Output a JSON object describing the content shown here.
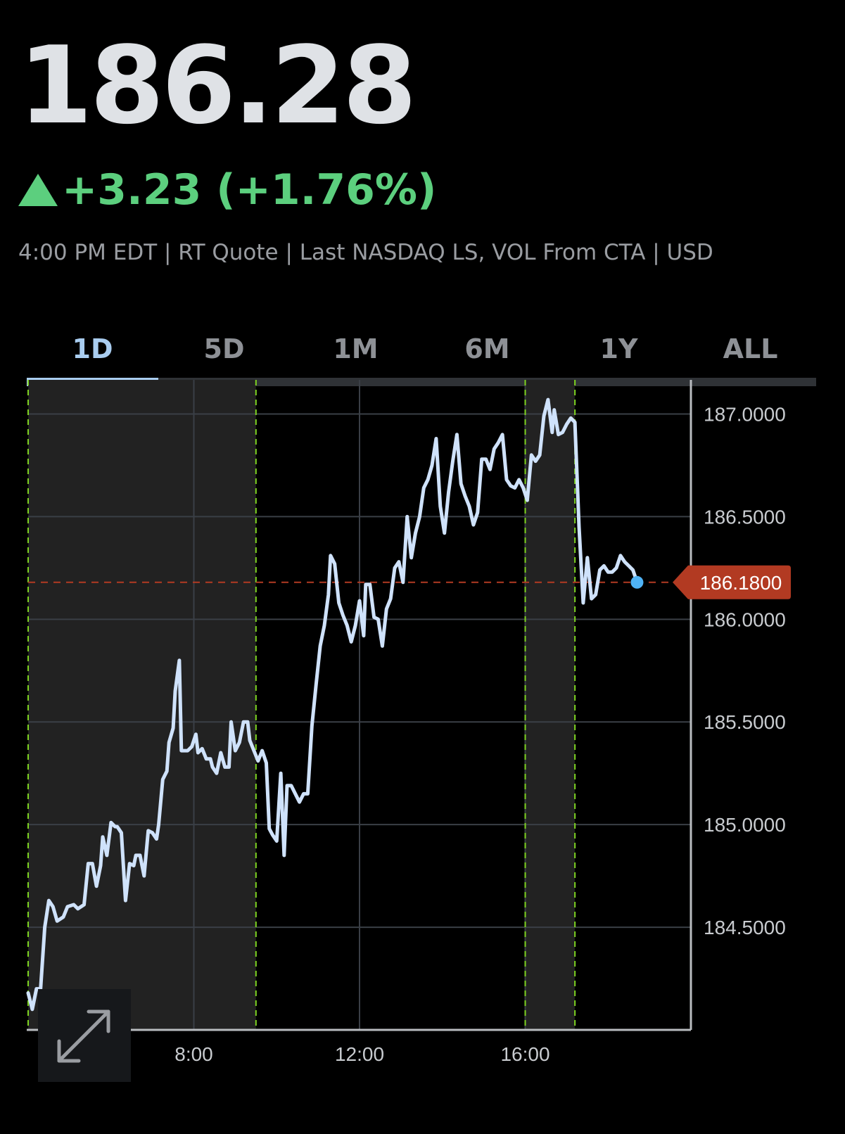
{
  "quote": {
    "price": "186.28",
    "change": "+3.23 (+1.76%)",
    "info": "4:00 PM EDT | RT Quote | Last NASDAQ LS, VOL From CTA | USD"
  },
  "tabs": [
    {
      "label": "1D",
      "active": true
    },
    {
      "label": "5D",
      "active": false
    },
    {
      "label": "1M",
      "active": false
    },
    {
      "label": "6M",
      "active": false
    },
    {
      "label": "1Y",
      "active": false
    },
    {
      "label": "ALL",
      "active": false
    }
  ],
  "colors": {
    "positive": "#5ccf7e",
    "line": "#cfe2fb",
    "tab_active": "#a9cdf0",
    "last_price_tag": "#b23a22",
    "session_divider": "#7ed321",
    "extended_hours_shade": "#222222",
    "last_point_dot": "#4fb3f6"
  },
  "icons": {
    "expand": "expand-arrows-icon",
    "change_direction": "triangle-up-icon"
  },
  "chart_data": {
    "type": "line",
    "x_unit": "hour of day",
    "x_ticks": [
      {
        "value": 8,
        "label": "8:00"
      },
      {
        "value": 12,
        "label": "12:00"
      },
      {
        "value": 16,
        "label": "16:00"
      }
    ],
    "y_ticks": [
      {
        "value": 187.0,
        "label": "187.0000"
      },
      {
        "value": 186.5,
        "label": "186.5000"
      },
      {
        "value": 186.0,
        "label": "186.0000"
      },
      {
        "value": 185.5,
        "label": "185.5000"
      },
      {
        "value": 185.0,
        "label": "185.0000"
      },
      {
        "value": 184.5,
        "label": "184.5000"
      }
    ],
    "xlim": [
      4,
      20
    ],
    "ylim": [
      184.0,
      187.125
    ],
    "y_axis_position": "right",
    "grid": true,
    "sessions": [
      {
        "type": "pre-market",
        "start": 4,
        "end": 9.5
      },
      {
        "type": "regular",
        "start": 9.5,
        "end": 16
      },
      {
        "type": "after-hours",
        "start": 16,
        "end": 17.2
      }
    ],
    "last_price": {
      "value": 186.18,
      "label": "186.1800"
    },
    "series": [
      {
        "points": [
          [
            4.0,
            184.18
          ],
          [
            4.1,
            184.1
          ],
          [
            4.2,
            184.2
          ],
          [
            4.3,
            184.2
          ],
          [
            4.4,
            184.5
          ],
          [
            4.5,
            184.63
          ],
          [
            4.6,
            184.6
          ],
          [
            4.7,
            184.53
          ],
          [
            4.85,
            184.55
          ],
          [
            4.95,
            184.6
          ],
          [
            5.1,
            184.61
          ],
          [
            5.2,
            184.59
          ],
          [
            5.35,
            184.61
          ],
          [
            5.45,
            184.81
          ],
          [
            5.55,
            184.81
          ],
          [
            5.65,
            184.7
          ],
          [
            5.75,
            184.8
          ],
          [
            5.8,
            184.94
          ],
          [
            5.9,
            184.85
          ],
          [
            6.0,
            185.01
          ],
          [
            6.1,
            184.99
          ],
          [
            6.15,
            184.99
          ],
          [
            6.25,
            184.96
          ],
          [
            6.35,
            184.63
          ],
          [
            6.45,
            184.81
          ],
          [
            6.55,
            184.8
          ],
          [
            6.6,
            184.85
          ],
          [
            6.7,
            184.85
          ],
          [
            6.8,
            184.75
          ],
          [
            6.9,
            184.97
          ],
          [
            7.0,
            184.96
          ],
          [
            7.1,
            184.93
          ],
          [
            7.15,
            185.0
          ],
          [
            7.25,
            185.22
          ],
          [
            7.35,
            185.26
          ],
          [
            7.4,
            185.4
          ],
          [
            7.5,
            185.47
          ],
          [
            7.55,
            185.65
          ],
          [
            7.65,
            185.8
          ],
          [
            7.7,
            185.36
          ],
          [
            7.85,
            185.36
          ],
          [
            7.95,
            185.38
          ],
          [
            8.05,
            185.44
          ],
          [
            8.1,
            185.35
          ],
          [
            8.2,
            185.37
          ],
          [
            8.3,
            185.32
          ],
          [
            8.4,
            185.32
          ],
          [
            8.45,
            185.28
          ],
          [
            8.55,
            185.25
          ],
          [
            8.65,
            185.35
          ],
          [
            8.75,
            185.28
          ],
          [
            8.85,
            185.28
          ],
          [
            8.9,
            185.5
          ],
          [
            9.0,
            185.36
          ],
          [
            9.1,
            185.4
          ],
          [
            9.2,
            185.5
          ],
          [
            9.3,
            185.5
          ],
          [
            9.35,
            185.41
          ],
          [
            9.45,
            185.36
          ],
          [
            9.55,
            185.31
          ],
          [
            9.65,
            185.36
          ],
          [
            9.75,
            185.3
          ],
          [
            9.82,
            184.98
          ],
          [
            9.9,
            184.95
          ],
          [
            10.0,
            184.92
          ],
          [
            10.1,
            185.25
          ],
          [
            10.18,
            184.85
          ],
          [
            10.25,
            185.19
          ],
          [
            10.35,
            185.19
          ],
          [
            10.45,
            185.15
          ],
          [
            10.55,
            185.11
          ],
          [
            10.65,
            185.15
          ],
          [
            10.75,
            185.15
          ],
          [
            10.85,
            185.48
          ],
          [
            10.95,
            185.68
          ],
          [
            11.05,
            185.87
          ],
          [
            11.15,
            185.97
          ],
          [
            11.25,
            186.12
          ],
          [
            11.3,
            186.31
          ],
          [
            11.4,
            186.27
          ],
          [
            11.5,
            186.08
          ],
          [
            11.6,
            186.02
          ],
          [
            11.7,
            185.97
          ],
          [
            11.8,
            185.89
          ],
          [
            11.9,
            185.97
          ],
          [
            12.0,
            186.09
          ],
          [
            12.1,
            185.92
          ],
          [
            12.15,
            186.17
          ],
          [
            12.25,
            186.17
          ],
          [
            12.35,
            186.01
          ],
          [
            12.45,
            186.0
          ],
          [
            12.55,
            185.87
          ],
          [
            12.65,
            186.05
          ],
          [
            12.75,
            186.1
          ],
          [
            12.85,
            186.25
          ],
          [
            12.95,
            186.28
          ],
          [
            13.05,
            186.18
          ],
          [
            13.15,
            186.5
          ],
          [
            13.25,
            186.3
          ],
          [
            13.35,
            186.42
          ],
          [
            13.45,
            186.5
          ],
          [
            13.55,
            186.64
          ],
          [
            13.65,
            186.68
          ],
          [
            13.75,
            186.75
          ],
          [
            13.85,
            186.88
          ],
          [
            13.95,
            186.55
          ],
          [
            14.05,
            186.42
          ],
          [
            14.15,
            186.62
          ],
          [
            14.25,
            186.77
          ],
          [
            14.35,
            186.9
          ],
          [
            14.45,
            186.66
          ],
          [
            14.55,
            186.6
          ],
          [
            14.65,
            186.55
          ],
          [
            14.75,
            186.46
          ],
          [
            14.85,
            186.52
          ],
          [
            14.95,
            186.78
          ],
          [
            15.05,
            186.78
          ],
          [
            15.15,
            186.73
          ],
          [
            15.25,
            186.83
          ],
          [
            15.35,
            186.86
          ],
          [
            15.45,
            186.9
          ],
          [
            15.55,
            186.68
          ],
          [
            15.65,
            186.65
          ],
          [
            15.75,
            186.64
          ],
          [
            15.85,
            186.68
          ],
          [
            15.95,
            186.64
          ],
          [
            16.05,
            186.58
          ],
          [
            16.15,
            186.8
          ],
          [
            16.25,
            186.77
          ],
          [
            16.35,
            186.8
          ],
          [
            16.45,
            186.99
          ],
          [
            16.55,
            187.07
          ],
          [
            16.65,
            186.91
          ],
          [
            16.7,
            187.02
          ],
          [
            16.8,
            186.9
          ],
          [
            16.9,
            186.91
          ],
          [
            17.0,
            186.95
          ],
          [
            17.1,
            186.98
          ],
          [
            17.2,
            186.96
          ],
          [
            17.3,
            186.45
          ],
          [
            17.4,
            186.08
          ],
          [
            17.5,
            186.3
          ],
          [
            17.6,
            186.1
          ],
          [
            17.7,
            186.12
          ],
          [
            17.8,
            186.24
          ],
          [
            17.9,
            186.26
          ],
          [
            18.0,
            186.23
          ],
          [
            18.1,
            186.23
          ],
          [
            18.2,
            186.25
          ],
          [
            18.3,
            186.31
          ],
          [
            18.4,
            186.28
          ],
          [
            18.5,
            186.26
          ],
          [
            18.6,
            186.24
          ],
          [
            18.7,
            186.18
          ]
        ]
      }
    ]
  }
}
